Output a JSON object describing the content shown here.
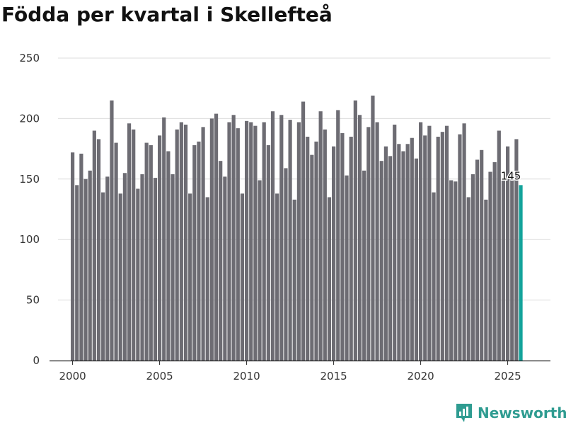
{
  "chart_data": {
    "type": "bar",
    "title": "Födda per kvartal i Skellefteå",
    "xlabel": "",
    "ylabel": "",
    "ylim": [
      0,
      250
    ],
    "yticks": [
      0,
      50,
      100,
      150,
      200,
      250
    ],
    "xticks": [
      "2000",
      "2005",
      "2010",
      "2015",
      "2020",
      "2025"
    ],
    "grid": true,
    "bar_color": "#6d6c73",
    "highlight_color": "#13a39b",
    "first_year": 2000,
    "annotation": {
      "text": "145",
      "target": "last"
    },
    "values": [
      172,
      145,
      171,
      150,
      157,
      190,
      183,
      139,
      152,
      215,
      180,
      138,
      155,
      196,
      191,
      142,
      154,
      180,
      178,
      151,
      186,
      201,
      173,
      154,
      191,
      197,
      195,
      138,
      178,
      181,
      193,
      135,
      200,
      204,
      165,
      152,
      197,
      203,
      192,
      138,
      198,
      197,
      194,
      149,
      197,
      178,
      206,
      138,
      203,
      159,
      199,
      133,
      197,
      214,
      185,
      170,
      181,
      206,
      191,
      135,
      177,
      207,
      188,
      153,
      185,
      215,
      203,
      157,
      193,
      219,
      197,
      165,
      177,
      169,
      195,
      179,
      173,
      179,
      184,
      167,
      197,
      186,
      194,
      139,
      185,
      189,
      194,
      149,
      148,
      187,
      196,
      135,
      154,
      166,
      174,
      133,
      156,
      164,
      190,
      151,
      177,
      155,
      183,
      145
    ]
  },
  "brand": {
    "name": "Newsworthy",
    "icon": "newsworthy-logo-icon"
  }
}
